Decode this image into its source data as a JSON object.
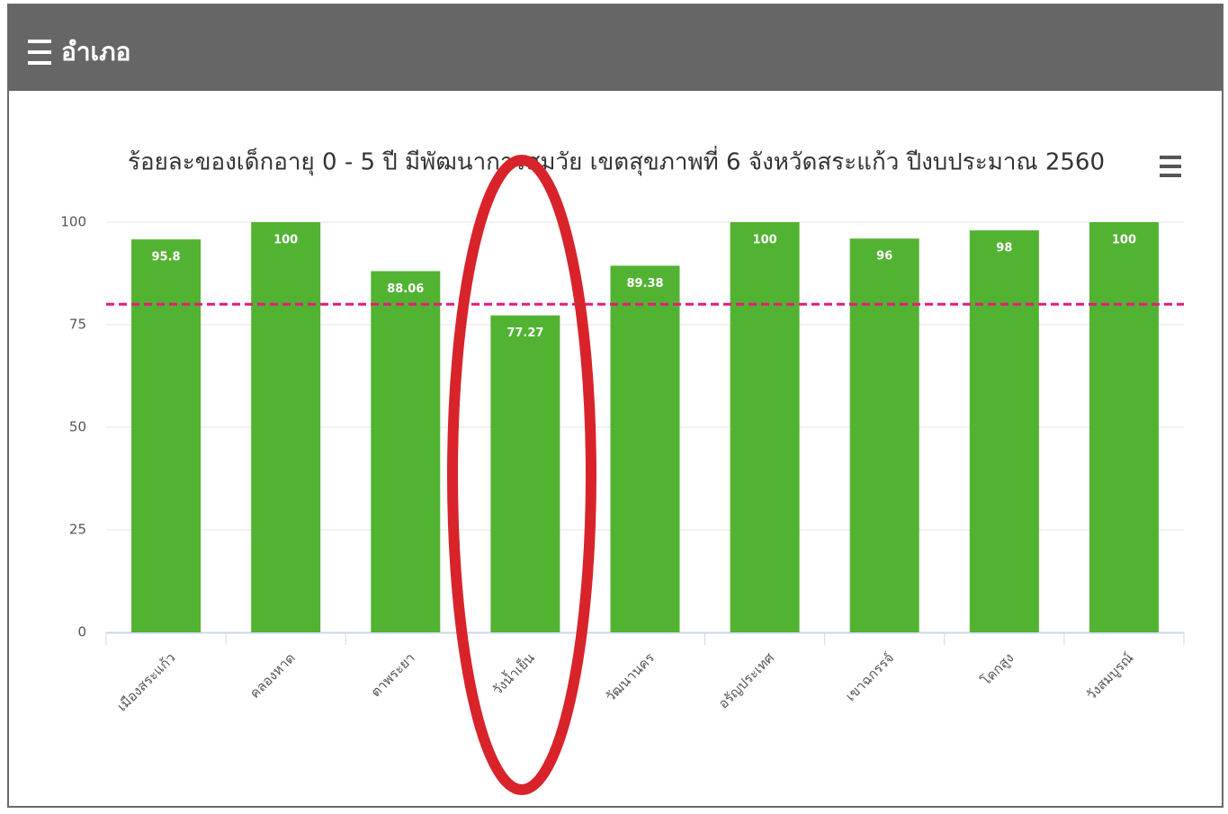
{
  "header": {
    "title": "อำเภอ"
  },
  "chart_data": {
    "type": "bar",
    "title": "ร้อยละของเด็กอายุ 0 - 5 ปี มีพัฒนาการสมวัย เขตสุขภาพที่ 6 จังหวัดสระแก้ว ปีงบประมาณ 2560",
    "categories": [
      "เมืองสระแก้ว",
      "คลองหาด",
      "ตาพระยา",
      "วังน้ำเย็น",
      "วัฒนานคร",
      "อรัญประเทศ",
      "เขาฉกรรจ์",
      "โคกสูง",
      "วังสมบูรณ์"
    ],
    "values": [
      95.8,
      100,
      88.06,
      77.27,
      89.38,
      100,
      96,
      98,
      100
    ],
    "color": "#52b332",
    "ylim": [
      0,
      100
    ],
    "yticks": [
      0,
      25,
      50,
      75,
      100
    ],
    "grid": true,
    "reference_line": 80,
    "reference_color": "#e6197f"
  }
}
